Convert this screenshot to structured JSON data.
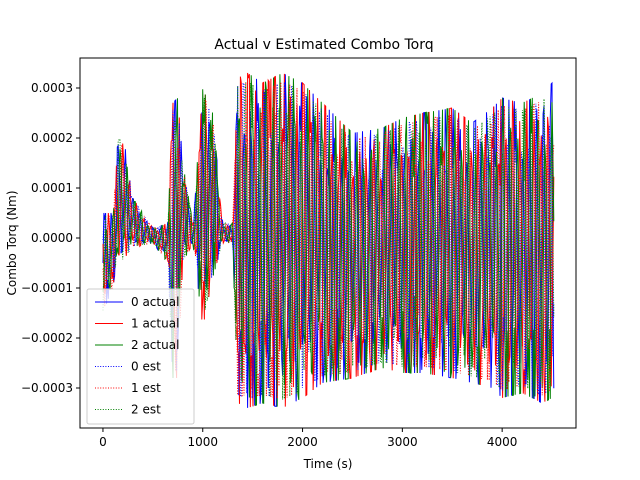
{
  "chart_data": {
    "type": "line",
    "title": "Actual v Estimated Combo Torq",
    "xlabel": "Time (s)",
    "ylabel": "Combo Torq (Nm)",
    "xlim": [
      -230,
      4740
    ],
    "ylim": [
      -0.00038,
      0.00036
    ],
    "x_ticks": [
      0,
      1000,
      2000,
      3000,
      4000
    ],
    "x_tick_labels": [
      "0",
      "1000",
      "2000",
      "3000",
      "4000"
    ],
    "y_ticks": [
      -0.0003,
      -0.0002,
      -0.0001,
      0.0,
      0.0001,
      0.0002,
      0.0003
    ],
    "y_tick_labels": [
      "−0.0003",
      "−0.0002",
      "−0.0001",
      "0.0000",
      "0.0001",
      "0.0002",
      "0.0003"
    ],
    "grid": false,
    "legend_position": "lower-left",
    "series": [
      {
        "name": "0 actual",
        "color": "#0000ff",
        "style": "solid"
      },
      {
        "name": "1 actual",
        "color": "#ff0000",
        "style": "solid"
      },
      {
        "name": "2 actual",
        "color": "#008000",
        "style": "solid"
      },
      {
        "name": "0 est",
        "color": "#0000ff",
        "style": "dotted"
      },
      {
        "name": "1 est",
        "color": "#ff0000",
        "style": "dotted"
      },
      {
        "name": "2 est",
        "color": "#008000",
        "style": "dotted"
      }
    ],
    "envelope": {
      "x": [
        0,
        100,
        150,
        200,
        300,
        500,
        650,
        700,
        750,
        800,
        900,
        1000,
        1100,
        1200,
        1300,
        1350,
        1450,
        1600,
        1800,
        2000,
        2200,
        2500,
        2800,
        3000,
        3200,
        3500,
        3700,
        3900,
        4000,
        4200,
        4400,
        4500
      ],
      "upper": [
        5e-05,
        5e-05,
        0.0002,
        0.00021,
        8e-05,
        2e-05,
        3e-05,
        0.00027,
        0.00028,
        0.00015,
        3e-05,
        0.0003,
        0.00025,
        3e-05,
        3e-05,
        0.00032,
        0.00033,
        0.00031,
        0.00033,
        0.00031,
        0.00027,
        0.00021,
        0.00022,
        0.00024,
        0.00025,
        0.00026,
        0.00023,
        0.00026,
        0.00028,
        0.00027,
        0.00029,
        0.00031
      ],
      "lower": [
        -0.00015,
        -0.0001,
        -3e-05,
        -5e-05,
        -2e-05,
        -1e-05,
        -5e-05,
        -0.00028,
        -0.00028,
        -5e-05,
        -1e-05,
        -0.00018,
        -8e-05,
        -1e-05,
        -1e-05,
        -0.00033,
        -0.00034,
        -0.00033,
        -0.00034,
        -0.00032,
        -0.00029,
        -0.00028,
        -0.00026,
        -0.00027,
        -0.00027,
        -0.00028,
        -0.00029,
        -0.0003,
        -0.00032,
        -0.00031,
        -0.00033,
        -0.00032
      ]
    }
  }
}
